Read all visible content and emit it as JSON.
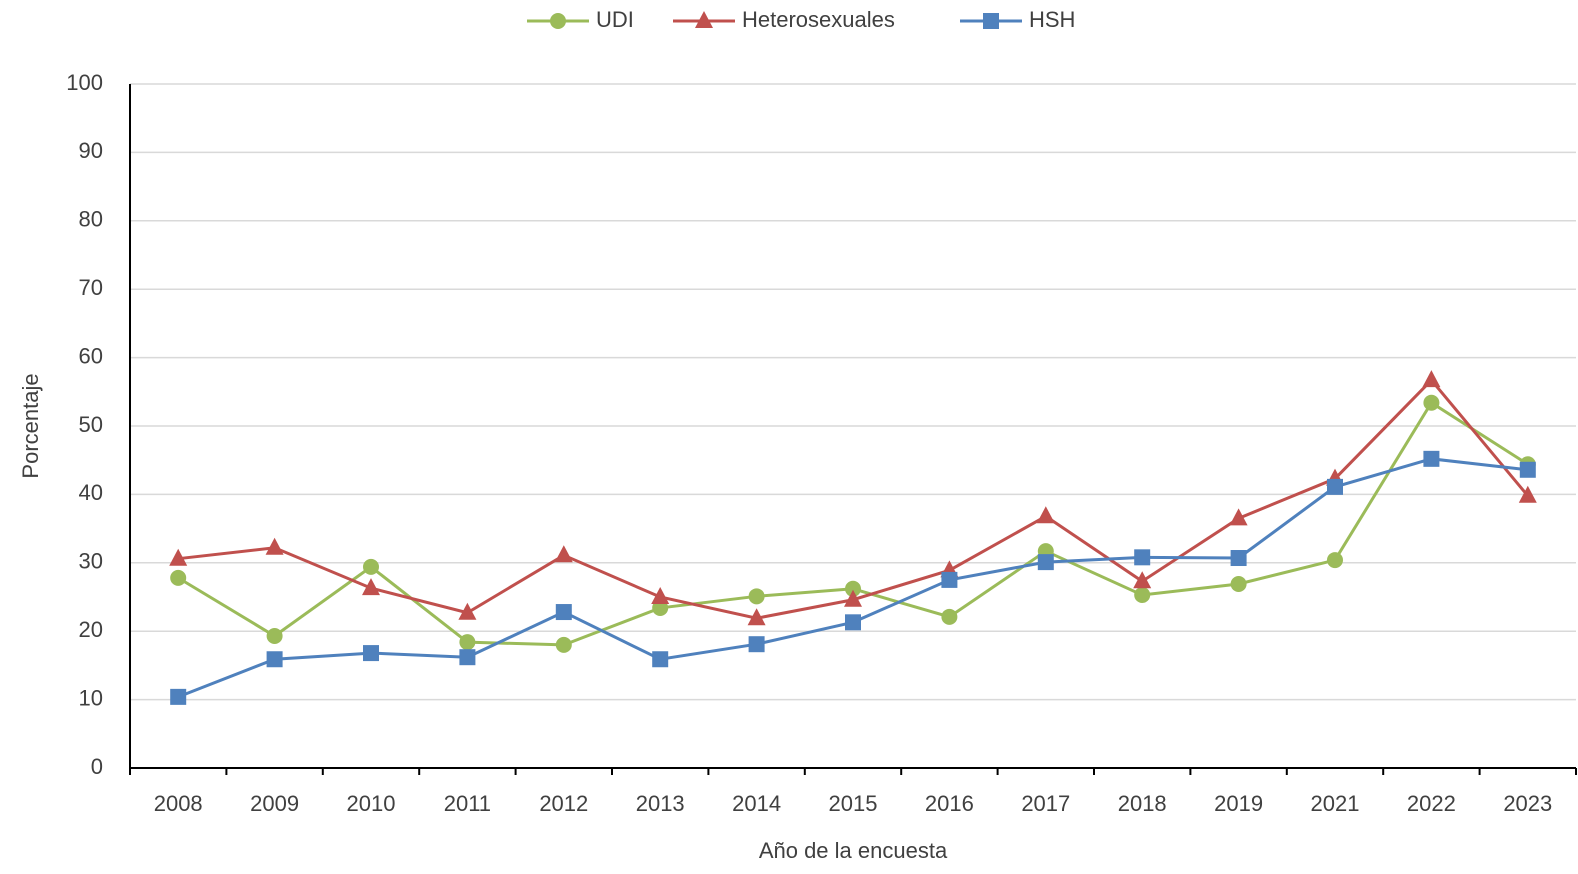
{
  "chart_data": {
    "type": "line",
    "x_label": "Año de la encuesta",
    "y_label": "Porcentaje",
    "categories": [
      "2008",
      "2009",
      "2010",
      "2011",
      "2012",
      "2013",
      "2014",
      "2015",
      "2016",
      "2017",
      "2018",
      "2019",
      "2021",
      "2022",
      "2023"
    ],
    "series": [
      {
        "name": "UDI",
        "color": "#9bbb59",
        "marker": "circle",
        "values": [
          27.8,
          19.3,
          29.4,
          18.4,
          18.0,
          23.4,
          25.1,
          26.2,
          22.1,
          31.7,
          25.3,
          26.9,
          30.4,
          53.4,
          44.4
        ]
      },
      {
        "name": "Heterosexuales",
        "color": "#c0504d",
        "marker": "triangle",
        "values": [
          30.6,
          32.2,
          26.3,
          22.7,
          31.1,
          25.0,
          21.9,
          24.6,
          28.9,
          36.8,
          27.3,
          36.5,
          42.3,
          56.7,
          39.8
        ]
      },
      {
        "name": "HSH",
        "color": "#4f81bd",
        "marker": "square",
        "values": [
          10.4,
          15.9,
          16.8,
          16.2,
          22.8,
          15.9,
          18.1,
          21.3,
          27.5,
          30.1,
          30.8,
          30.7,
          41.1,
          45.2,
          43.6
        ]
      }
    ],
    "ylim": [
      0,
      100
    ],
    "yticks": [
      0,
      10,
      20,
      30,
      40,
      50,
      60,
      70,
      80,
      90,
      100
    ],
    "grid": true,
    "legend": "top"
  }
}
